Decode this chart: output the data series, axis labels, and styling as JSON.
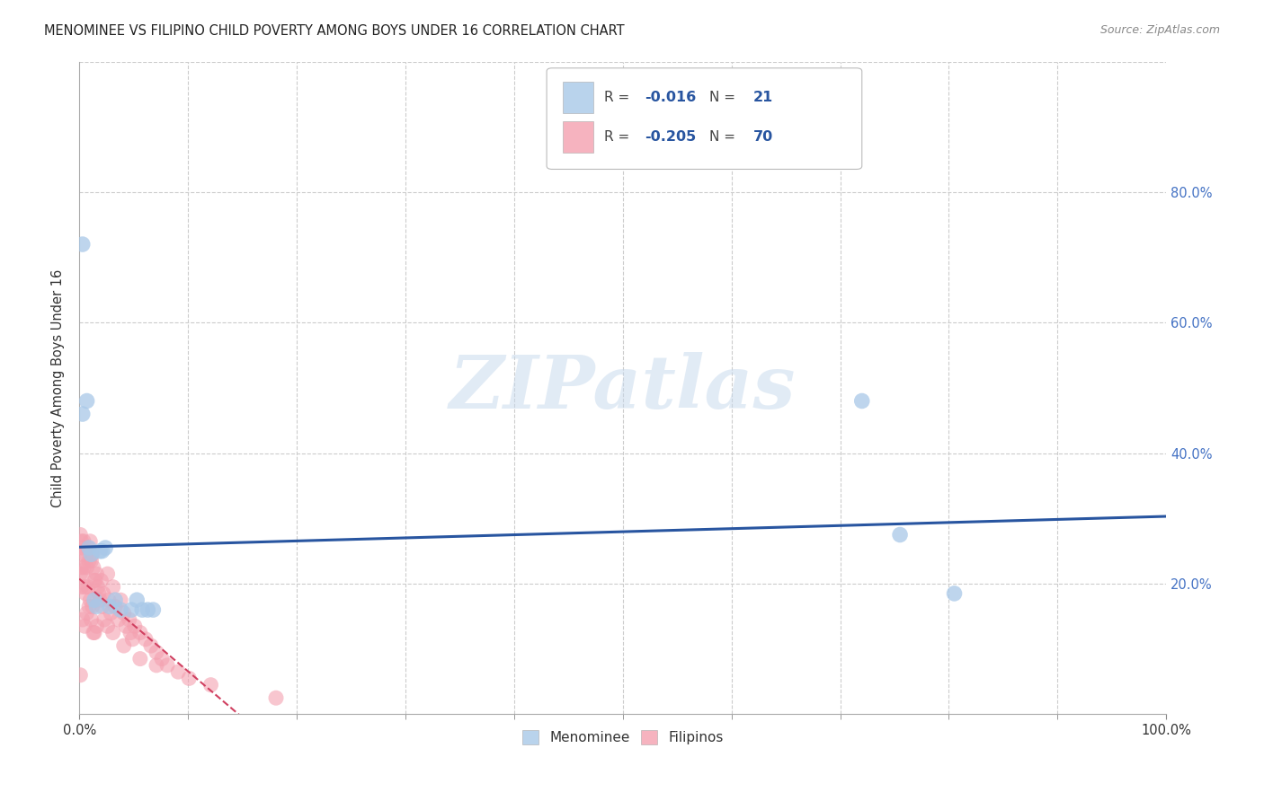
{
  "title": "MENOMINEE VS FILIPINO CHILD POVERTY AMONG BOYS UNDER 16 CORRELATION CHART",
  "source": "Source: ZipAtlas.com",
  "ylabel": "Child Poverty Among Boys Under 16",
  "xlim": [
    0,
    1.0
  ],
  "ylim": [
    0,
    1.0
  ],
  "xtick_major_vals": [
    0.0,
    1.0
  ],
  "xtick_major_labels": [
    "0.0%",
    "100.0%"
  ],
  "xtick_minor_vals": [
    0.1,
    0.2,
    0.3,
    0.4,
    0.5,
    0.6,
    0.7,
    0.8,
    0.9
  ],
  "ytick_vals": [
    0.2,
    0.4,
    0.6,
    0.8
  ],
  "ytick_labels": [
    "20.0%",
    "40.0%",
    "60.0%",
    "80.0%"
  ],
  "menominee_color": "#A8C8E8",
  "filipino_color": "#F4A0B0",
  "trendline_menominee_color": "#2855A0",
  "trendline_filipino_color": "#D04060",
  "background_color": "#FFFFFF",
  "watermark": "ZIPatlas",
  "legend_r_menominee": "-0.016",
  "legend_n_menominee": "21",
  "legend_r_filipino": "-0.205",
  "legend_n_filipino": "70",
  "menominee_x": [
    0.003,
    0.003,
    0.007,
    0.009,
    0.011,
    0.014,
    0.016,
    0.019,
    0.021,
    0.024,
    0.028,
    0.033,
    0.038,
    0.048,
    0.053,
    0.058,
    0.063,
    0.068,
    0.72,
    0.755,
    0.805
  ],
  "menominee_y": [
    0.72,
    0.46,
    0.48,
    0.255,
    0.245,
    0.175,
    0.165,
    0.25,
    0.25,
    0.255,
    0.165,
    0.175,
    0.16,
    0.16,
    0.175,
    0.16,
    0.16,
    0.16,
    0.48,
    0.275,
    0.185
  ],
  "filipino_x": [
    0.001,
    0.001,
    0.001,
    0.001,
    0.002,
    0.002,
    0.002,
    0.003,
    0.003,
    0.003,
    0.004,
    0.004,
    0.005,
    0.005,
    0.006,
    0.006,
    0.007,
    0.007,
    0.008,
    0.008,
    0.009,
    0.009,
    0.01,
    0.01,
    0.011,
    0.011,
    0.012,
    0.012,
    0.013,
    0.013,
    0.014,
    0.014,
    0.015,
    0.016,
    0.016,
    0.017,
    0.018,
    0.019,
    0.02,
    0.021,
    0.022,
    0.023,
    0.026,
    0.026,
    0.027,
    0.029,
    0.031,
    0.031,
    0.033,
    0.036,
    0.038,
    0.041,
    0.041,
    0.043,
    0.046,
    0.047,
    0.049,
    0.051,
    0.056,
    0.056,
    0.061,
    0.066,
    0.071,
    0.071,
    0.076,
    0.081,
    0.091,
    0.101,
    0.121,
    0.181
  ],
  "filipino_y": [
    0.275,
    0.245,
    0.215,
    0.06,
    0.265,
    0.225,
    0.195,
    0.255,
    0.215,
    0.145,
    0.265,
    0.225,
    0.195,
    0.135,
    0.245,
    0.185,
    0.225,
    0.155,
    0.255,
    0.195,
    0.235,
    0.165,
    0.265,
    0.175,
    0.235,
    0.145,
    0.245,
    0.165,
    0.225,
    0.125,
    0.205,
    0.125,
    0.205,
    0.215,
    0.135,
    0.195,
    0.185,
    0.175,
    0.205,
    0.165,
    0.185,
    0.145,
    0.215,
    0.135,
    0.175,
    0.155,
    0.195,
    0.125,
    0.165,
    0.145,
    0.175,
    0.155,
    0.105,
    0.135,
    0.145,
    0.125,
    0.115,
    0.135,
    0.125,
    0.085,
    0.115,
    0.105,
    0.095,
    0.075,
    0.085,
    0.075,
    0.065,
    0.055,
    0.045,
    0.025
  ]
}
